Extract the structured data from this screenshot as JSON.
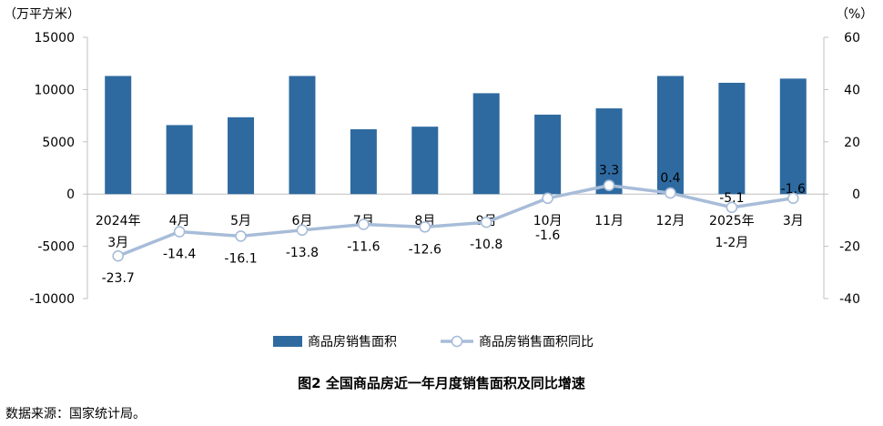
{
  "chart_data": {
    "type": "bar",
    "title": "图2 全国商品房近一年月度销售面积及同比增速",
    "y_left_unit": "（万平方米）",
    "y_right_unit": "（%）",
    "ylim_left": [
      -10000,
      15000
    ],
    "ylim_right": [
      -40,
      60
    ],
    "left_ticks": [
      "15000",
      "10000",
      "5000",
      "0",
      "-5000",
      "-10000"
    ],
    "right_ticks": [
      "60",
      "40",
      "20",
      "0",
      "-20",
      "-40"
    ],
    "categories": [
      [
        "2024年",
        "3月"
      ],
      [
        "4月"
      ],
      [
        "5月"
      ],
      [
        "6月"
      ],
      [
        "7月"
      ],
      [
        "8月"
      ],
      [
        "9月"
      ],
      [
        "10月"
      ],
      [
        "11月"
      ],
      [
        "12月"
      ],
      [
        "2025年",
        "1-2月"
      ],
      [
        "3月"
      ]
    ],
    "series": [
      {
        "name": "商品房销售面积",
        "type": "bar",
        "axis": "left",
        "color": "#2e6aa0",
        "values": [
          11300,
          6600,
          7350,
          11300,
          6200,
          6450,
          9650,
          7600,
          8200,
          11300,
          10650,
          11050
        ]
      },
      {
        "name": "商品房销售面积同比",
        "type": "line",
        "axis": "right",
        "color": "#a7bcd8",
        "values": [
          -23.7,
          -14.4,
          -16.1,
          -13.8,
          -11.6,
          -12.6,
          -10.8,
          -1.6,
          3.3,
          0.4,
          -5.1,
          -1.6
        ],
        "labels": [
          "-23.7",
          "-14.4",
          "-16.1",
          "-13.8",
          "-11.6",
          "-12.6",
          "-10.8",
          "-1.6",
          "3.3",
          "0.4",
          "-5.1",
          "-1.6"
        ]
      }
    ],
    "legend": "bottom-center"
  },
  "source_note": "数据来源：国家统计局。"
}
